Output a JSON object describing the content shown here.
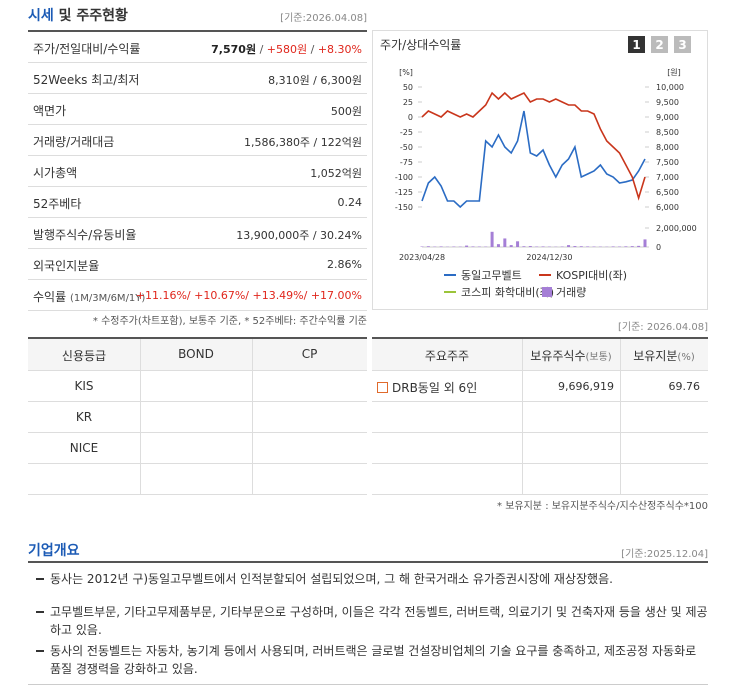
{
  "header": {
    "title_main": "시세",
    "title_rest": "및 주주현황",
    "date": "[기준:2026.04.08]"
  },
  "quote_table": {
    "rows": [
      {
        "label": "주가/전일대비/수익률",
        "value": [
          "7,570원",
          " / ",
          "+580원",
          " / ",
          "+8.30%"
        ]
      },
      {
        "label": "52Weeks 최고/최저",
        "value": [
          "8,310원 / 6,300원"
        ]
      },
      {
        "label": "액면가",
        "value": [
          "500원"
        ]
      },
      {
        "label": "거래량/거래대금",
        "value": [
          "1,586,380주 / 122억원"
        ]
      },
      {
        "label": "시가총액",
        "value": [
          "1,052억원"
        ]
      },
      {
        "label": "52주베타",
        "value": [
          "0.24"
        ]
      },
      {
        "label": "발행주식수/유동비율",
        "value": [
          "13,900,000주 / 30.24%"
        ]
      },
      {
        "label": "외국인지분율",
        "value": [
          "2.86%"
        ]
      },
      {
        "label": "수익률",
        "sub": "(1M/3M/6M/1Y)",
        "value": [
          "+11.16%/ +10.67%/ +13.49%/ +17.00%"
        ]
      }
    ],
    "note": "* 수정주가(차트포함), 보통주 기준, * 52주베타: 주간수익률 기준"
  },
  "chart_panel": {
    "title": "주가/상대수익률",
    "buttons": [
      "1",
      "2",
      "3"
    ],
    "date": "[기준: 2026.04.08]"
  },
  "chart_data": {
    "type": "line",
    "ylabel": "[%]",
    "y2label": "[원]",
    "categories": [
      "2023/04/28",
      null,
      null,
      null,
      null,
      null,
      null,
      null,
      null,
      null,
      null,
      null,
      null,
      null,
      null,
      null,
      null,
      null,
      null,
      null,
      "2024/12/30",
      null,
      null,
      null,
      null,
      null,
      null,
      null,
      null,
      null,
      null,
      null,
      null,
      null,
      null,
      null
    ],
    "ylim": [
      -150,
      50
    ],
    "yticks": [
      50,
      25,
      0,
      -25,
      -50,
      -75,
      -100,
      -125,
      -150
    ],
    "y2lim": [
      6000,
      10000
    ],
    "y2ticks": [
      {
        "value": 10000,
        "label": "10,000"
      },
      {
        "value": 9500,
        "label": "9,500"
      },
      {
        "value": 9000,
        "label": "9,000"
      },
      {
        "value": 8500,
        "label": "8,500"
      },
      {
        "value": 8000,
        "label": "8,000"
      },
      {
        "value": 7500,
        "label": "7,500"
      },
      {
        "value": 7000,
        "label": "7,000"
      },
      {
        "value": 6500,
        "label": "6,500"
      },
      {
        "value": 6000,
        "label": "6,000"
      }
    ],
    "volume_lim": [
      0,
      2000000
    ],
    "volume_ticks": [
      {
        "value": 2000000,
        "label": "2,000,000"
      },
      0
    ],
    "series": [
      {
        "name": "동일고무벨트",
        "color": "#2b6cc4",
        "values": [
          -140,
          -110,
          -100,
          -115,
          -140,
          -140,
          -150,
          -140,
          -140,
          -140,
          -40,
          -50,
          -30,
          -50,
          -60,
          -40,
          10,
          -60,
          -65,
          -55,
          -80,
          -100,
          -80,
          -70,
          -50,
          -100,
          -95,
          -90,
          -80,
          -95,
          -100,
          -110,
          -108,
          -105,
          -90,
          -70
        ]
      },
      {
        "name": "KOSPI대비(좌)",
        "color": "#c9361c",
        "values": [
          0,
          10,
          5,
          0,
          10,
          5,
          0,
          5,
          0,
          10,
          20,
          40,
          30,
          40,
          30,
          35,
          40,
          25,
          30,
          30,
          25,
          30,
          25,
          20,
          20,
          10,
          10,
          5,
          -20,
          -40,
          -50,
          -60,
          -80,
          -100,
          -135,
          -100
        ]
      },
      {
        "name": "코스피 화학대비(좌)",
        "color": "#9bc43a",
        "values": [
          null,
          null,
          null,
          null,
          null,
          null,
          null,
          null,
          null,
          null,
          null,
          null,
          null,
          null,
          null,
          null,
          null,
          null,
          null,
          null,
          null,
          null,
          null,
          null,
          null,
          null,
          null,
          null,
          null,
          null,
          null,
          null,
          null,
          null,
          null,
          null
        ]
      },
      {
        "name": "거래량",
        "color": "#a57fd6",
        "type": "bar",
        "axis": "volume",
        "values": [
          50000,
          80000,
          40000,
          60000,
          30000,
          50000,
          40000,
          150000,
          60000,
          50000,
          40000,
          1600000,
          300000,
          900000,
          200000,
          600000,
          80000,
          100000,
          50000,
          60000,
          40000,
          30000,
          50000,
          200000,
          100000,
          80000,
          60000,
          50000,
          40000,
          30000,
          60000,
          50000,
          70000,
          90000,
          120000,
          800000
        ]
      }
    ]
  },
  "credit_table": {
    "header": [
      "신용등급",
      "BOND",
      "CP"
    ],
    "agencies": [
      "KIS",
      "KR",
      "NICE"
    ]
  },
  "holders_table": {
    "header": [
      "주요주주",
      {
        "text": "보유주식수",
        "sub": "(보통)"
      },
      {
        "text": "보유지분",
        "sub": "(%)"
      }
    ],
    "rows": [
      [
        "DRB동일 외 6인",
        "9,696,919",
        "69.76"
      ]
    ],
    "note": "* 보유지분 : 보유지분주식수/지수산정주식수*100"
  },
  "overview": {
    "title": "기업개요",
    "date": "[기준:2025.12.04]",
    "items": [
      "동사는 2012년 구)동일고무벨트에서 인적분할되어 설립되었으며, 그 해 한국거래소 유가증권시장에 재상장했음.",
      "고무벨트부문, 기타고무제품부문, 기타부문으로 구성하며, 이들은 각각 전동벨트, 러버트랙, 의료기기 및 건축자재 등을 생산 및 제공하고 있음.",
      "동사의 전동벨트는 자동차, 농기계 등에서 사용되며, 러버트랙은 글로벌 건설장비업체의 기술 요구를 충족하고, 제조공정 자동화로 품질 경쟁력을 강화하고 있음."
    ]
  }
}
